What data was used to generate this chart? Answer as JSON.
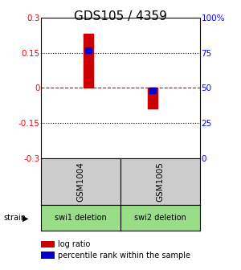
{
  "title": "GDS105 / 4359",
  "samples": [
    "GSM1004",
    "GSM1005"
  ],
  "strain_labels": [
    "swi1 deletion",
    "swi2 deletion"
  ],
  "log_ratios": [
    0.23,
    -0.09
  ],
  "percentile_ranks": [
    0.77,
    0.48
  ],
  "ylim": [
    -0.3,
    0.3
  ],
  "yticks_left": [
    0.3,
    0.15,
    0,
    -0.15,
    -0.3
  ],
  "ytick_labels_left": [
    "0.3",
    "0.15",
    "0",
    "-0.15",
    "-0.3"
  ],
  "ytick_labels_right": [
    "100%",
    "75",
    "50",
    "25",
    "0"
  ],
  "bar_color": "#cc0000",
  "percentile_color": "#0000cc",
  "zero_line_color": "#cc0000",
  "dotted_line_color": "#000000",
  "sample_box_color": "#cccccc",
  "strain_box_color": "#99dd88",
  "background_color": "#ffffff",
  "title_fontsize": 11,
  "bar_width": 0.06,
  "percentile_bar_width": 0.04,
  "percentile_bar_height": 0.012,
  "x_positions": [
    0.3,
    0.7
  ],
  "xlim": [
    0,
    1
  ]
}
